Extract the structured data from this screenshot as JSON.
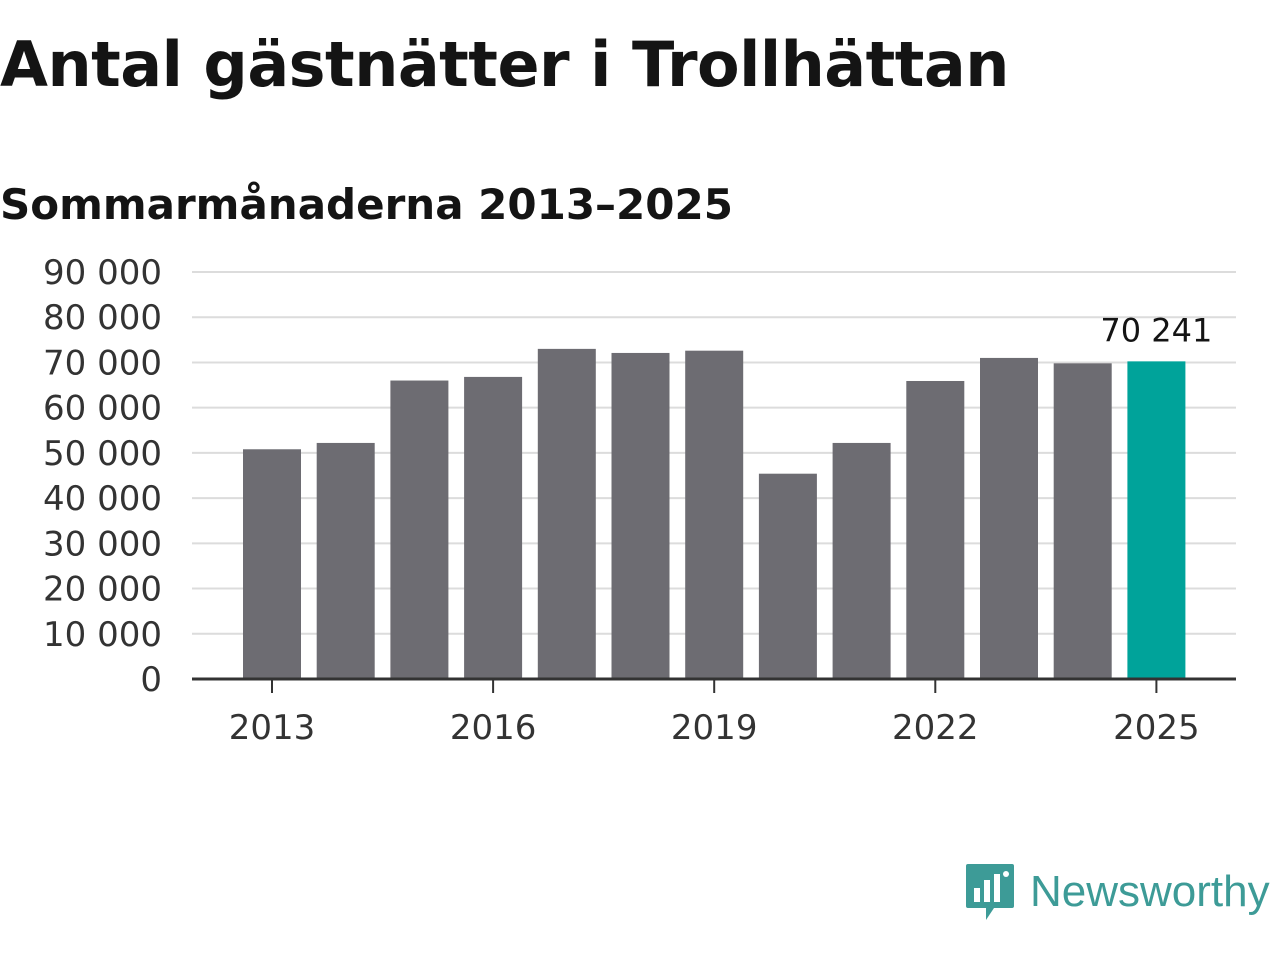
{
  "chart_data": {
    "type": "bar",
    "title": "Antal gästnätter i Trollhättan",
    "subtitle": "Sommarmånaderna 2013–2025",
    "categories": [
      "2013",
      "2014",
      "2015",
      "2016",
      "2017",
      "2018",
      "2019",
      "2020",
      "2021",
      "2022",
      "2023",
      "2024",
      "2025"
    ],
    "values": [
      50800,
      52200,
      66000,
      66800,
      73000,
      72100,
      72600,
      45400,
      52200,
      65900,
      71000,
      69800,
      70241
    ],
    "x_tick_labels": [
      "2013",
      "2016",
      "2019",
      "2022",
      "2025"
    ],
    "y_tick_labels": [
      "0",
      "10 000",
      "20 000",
      "30 000",
      "40 000",
      "50 000",
      "60 000",
      "70 000",
      "80 000",
      "90 000"
    ],
    "ylim": [
      0,
      90000
    ],
    "grid": true,
    "highlight": {
      "category": "2025",
      "label": "70 241"
    },
    "colors": {
      "bar": "#6d6c72",
      "highlight": "#00a39a",
      "grid": "#dcdcdc",
      "axis": "#333333"
    }
  },
  "brand": {
    "name": "Newsworthy",
    "icon": "newsworthy-bar-chart-icon",
    "color": "#3d9b97"
  }
}
